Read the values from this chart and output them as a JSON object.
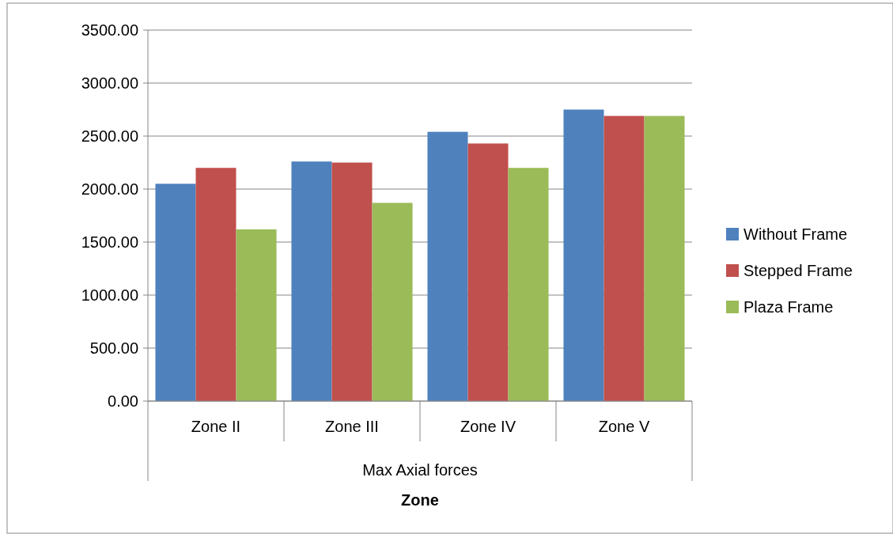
{
  "chart_data": {
    "type": "bar",
    "xlabel": "Zone",
    "annotations": [
      "Max Axial forces"
    ],
    "categories": [
      "Zone II",
      "Zone III",
      "Zone IV",
      "Zone V"
    ],
    "series": [
      {
        "name": "Without Frame",
        "color": "#4f81bd",
        "values": [
          2050,
          2260,
          2540,
          2750
        ]
      },
      {
        "name": "Stepped Frame",
        "color": "#c0504d",
        "values": [
          2200,
          2250,
          2430,
          2690
        ]
      },
      {
        "name": "Plaza Frame",
        "color": "#9bbb59",
        "values": [
          1620,
          1870,
          2200,
          2690
        ]
      }
    ],
    "ylim": [
      0,
      3500
    ],
    "yticks": [
      {
        "value": 0,
        "label": "0.00"
      },
      {
        "value": 500,
        "label": "500.00"
      },
      {
        "value": 1000,
        "label": "1000.00"
      },
      {
        "value": 1500,
        "label": "1500.00"
      },
      {
        "value": 2000,
        "label": "2000.00"
      },
      {
        "value": 2500,
        "label": "2500.00"
      },
      {
        "value": 3000,
        "label": "3000.00"
      },
      {
        "value": 3500,
        "label": "3500.00"
      }
    ],
    "grid": "y",
    "legend": "right"
  }
}
